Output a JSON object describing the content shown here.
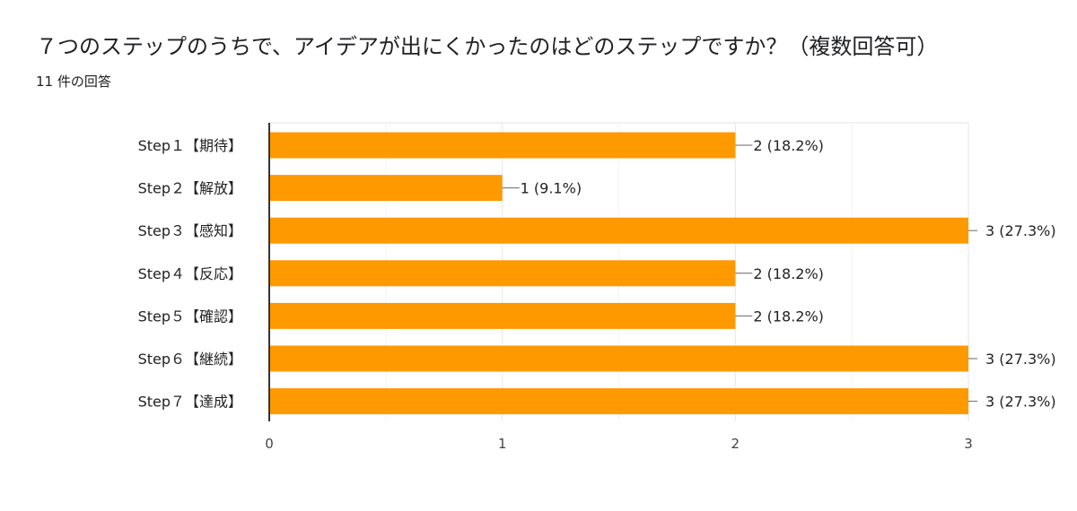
{
  "page": {
    "title": "７つのステップのうちで、アイデアが出にくかったのはどのステップですか？（複数回答可）",
    "response_count": "11 件の回答"
  },
  "colors": {
    "bar": "#ff9900",
    "grid": "#e6e6e6",
    "axis": "#333333",
    "leader": "#666666"
  },
  "chart_data": {
    "type": "bar",
    "orientation": "horizontal",
    "title": "７つのステップのうちで、アイデアが出にくかったのはどのステップですか？（複数回答可）",
    "xlabel": "",
    "ylabel": "",
    "xlim": [
      0,
      3
    ],
    "ticks": [
      0,
      1,
      2,
      3
    ],
    "grid": true,
    "categories": [
      "Step１【期待】",
      "Step２【解放】",
      "Step３【感知】",
      "Step４【反応】",
      "Step５【確認】",
      "Step６【継続】",
      "Step７【達成】"
    ],
    "values": [
      2,
      1,
      3,
      2,
      2,
      3,
      3
    ],
    "data_labels": [
      "2 (18.2%)",
      "1 (9.1%)",
      "3 (27.3%)",
      "2 (18.2%)",
      "2 (18.2%)",
      "3 (27.3%)",
      "3 (27.3%)"
    ]
  }
}
